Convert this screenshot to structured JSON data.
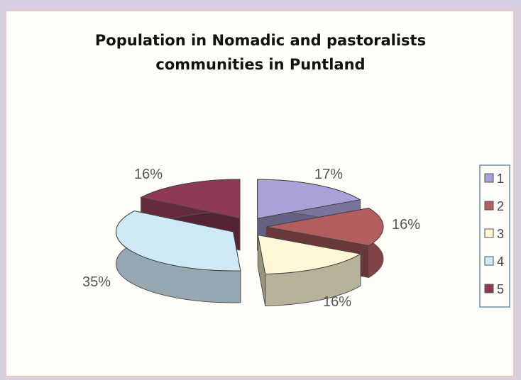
{
  "chart_data": {
    "type": "pie",
    "title_lines": [
      "Population in Nomadic and pastoralists",
      "communities in Puntland"
    ],
    "categories": [
      "1",
      "2",
      "3",
      "4",
      "5"
    ],
    "values": [
      17,
      16,
      16,
      35,
      16
    ],
    "value_labels": [
      "17%",
      "16%",
      "16%",
      "35%",
      "16%"
    ],
    "colors": [
      "#a9a2d8",
      "#b35d5f",
      "#fff7d6",
      "#cfeaf6",
      "#8e3a55"
    ],
    "legend_position": "right",
    "style": "3d-exploded"
  }
}
